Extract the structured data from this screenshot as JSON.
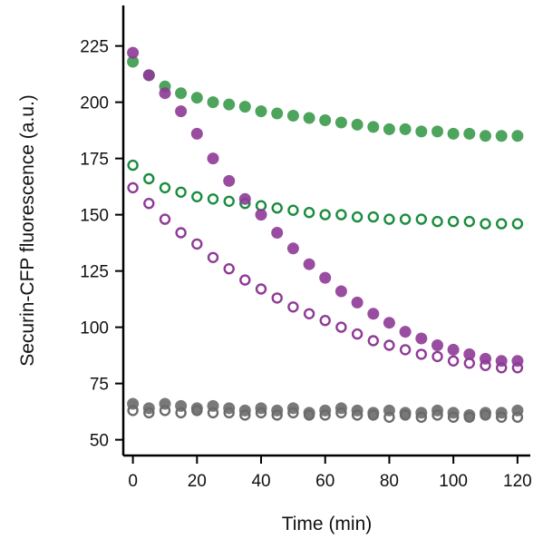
{
  "chart_data": {
    "type": "scatter",
    "title": "",
    "xlabel": "Time (min)",
    "ylabel": "Securin-CFP fluorescence (a.u.)",
    "xlim": [
      -3,
      124
    ],
    "ylim": [
      43,
      243
    ],
    "xticks": [
      0,
      20,
      40,
      60,
      80,
      100,
      120
    ],
    "yticks": [
      50,
      75,
      100,
      125,
      150,
      175,
      200,
      225
    ],
    "x_tick_labels": [
      "0",
      "20",
      "40",
      "60",
      "80",
      "100",
      "120"
    ],
    "y_tick_labels": [
      "50",
      "75",
      "100",
      "125",
      "150",
      "175",
      "200",
      "225"
    ],
    "grid": false,
    "legend": "none",
    "series": [
      {
        "color": "#3a9a4a",
        "marker": "filled-circle",
        "x": [
          0,
          5,
          10,
          15,
          20,
          25,
          30,
          35,
          40,
          45,
          50,
          55,
          60,
          65,
          70,
          75,
          80,
          85,
          90,
          95,
          100,
          105,
          110,
          115,
          120
        ],
        "y": [
          218,
          212,
          207,
          204,
          202,
          200,
          199,
          198,
          196,
          195,
          194,
          193,
          192,
          191,
          190,
          189,
          188,
          188,
          187,
          187,
          186,
          186,
          185,
          185,
          185
        ]
      },
      {
        "color": "#1a8c3e",
        "marker": "open-circle",
        "x": [
          0,
          5,
          10,
          15,
          20,
          25,
          30,
          35,
          40,
          45,
          50,
          55,
          60,
          65,
          70,
          75,
          80,
          85,
          90,
          95,
          100,
          105,
          110,
          115,
          120
        ],
        "y": [
          172,
          166,
          162,
          160,
          158,
          157,
          156,
          155,
          154,
          153,
          152,
          151,
          150,
          150,
          149,
          149,
          148,
          148,
          148,
          147,
          147,
          147,
          146,
          146,
          146
        ]
      },
      {
        "color": "#8e3a96",
        "marker": "filled-circle",
        "x": [
          0,
          5,
          10,
          15,
          20,
          25,
          30,
          35,
          40,
          45,
          50,
          55,
          60,
          65,
          70,
          75,
          80,
          85,
          90,
          95,
          100,
          105,
          110,
          115,
          120
        ],
        "y": [
          222,
          212,
          204,
          196,
          186,
          175,
          165,
          157,
          150,
          142,
          135,
          128,
          122,
          116,
          111,
          106,
          102,
          98,
          95,
          92,
          90,
          88,
          86,
          85,
          85
        ]
      },
      {
        "color": "#8e3a96",
        "marker": "open-circle",
        "x": [
          0,
          5,
          10,
          15,
          20,
          25,
          30,
          35,
          40,
          45,
          50,
          55,
          60,
          65,
          70,
          75,
          80,
          85,
          90,
          95,
          100,
          105,
          110,
          115,
          120
        ],
        "y": [
          162,
          155,
          148,
          142,
          137,
          131,
          126,
          121,
          117,
          113,
          109,
          106,
          103,
          100,
          97,
          94,
          92,
          90,
          88,
          87,
          85,
          84,
          83,
          82,
          82
        ]
      },
      {
        "color": "#6a6a6a",
        "marker": "filled-circle",
        "x": [
          0,
          5,
          10,
          15,
          20,
          25,
          30,
          35,
          40,
          45,
          50,
          55,
          60,
          65,
          70,
          75,
          80,
          85,
          90,
          95,
          100,
          105,
          110,
          115,
          120
        ],
        "y": [
          66,
          64,
          66,
          65,
          64,
          65,
          64,
          63,
          64,
          63,
          64,
          62,
          63,
          64,
          63,
          62,
          63,
          62,
          62,
          63,
          62,
          61,
          62,
          62,
          63
        ]
      },
      {
        "color": "#6a6a6a",
        "marker": "open-circle",
        "x": [
          0,
          5,
          10,
          15,
          20,
          25,
          30,
          35,
          40,
          45,
          50,
          55,
          60,
          65,
          70,
          75,
          80,
          85,
          90,
          95,
          100,
          105,
          110,
          115,
          120
        ],
        "y": [
          63,
          62,
          63,
          62,
          63,
          62,
          62,
          61,
          62,
          61,
          62,
          61,
          61,
          62,
          61,
          61,
          60,
          61,
          60,
          61,
          60,
          60,
          61,
          60,
          60
        ]
      }
    ]
  }
}
